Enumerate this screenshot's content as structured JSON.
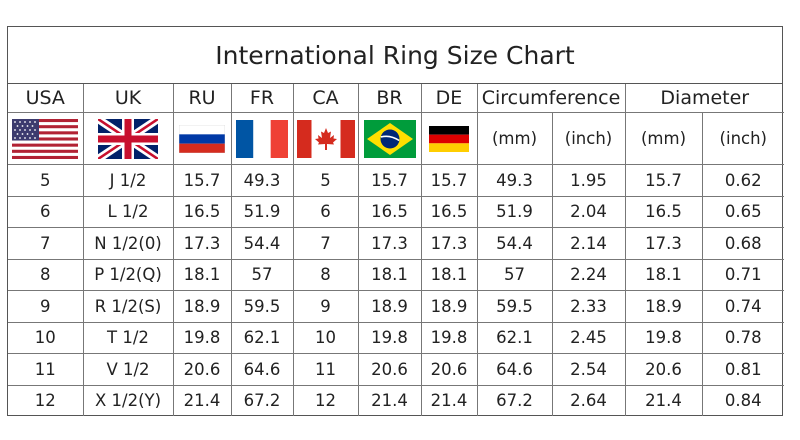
{
  "title": "International Ring Size Chart",
  "headers": [
    "USA",
    "UK",
    "RU",
    "FR",
    "CA",
    "BR",
    "DE",
    "Circumference",
    "Diameter"
  ],
  "units": [
    "(mm)",
    "(inch)",
    "(mm)",
    "(inch)"
  ],
  "flags": [
    "usa-flag-icon",
    "uk-flag-icon",
    "russia-flag-icon",
    "france-flag-icon",
    "canada-flag-icon",
    "brazil-flag-icon",
    "germany-flag-icon"
  ],
  "rows": [
    [
      "5",
      "J 1/2",
      "15.7",
      "49.3",
      "5",
      "15.7",
      "15.7",
      "49.3",
      "1.95",
      "15.7",
      "0.62"
    ],
    [
      "6",
      "L 1/2",
      "16.5",
      "51.9",
      "6",
      "16.5",
      "16.5",
      "51.9",
      "2.04",
      "16.5",
      "0.65"
    ],
    [
      "7",
      "N 1/2(0)",
      "17.3",
      "54.4",
      "7",
      "17.3",
      "17.3",
      "54.4",
      "2.14",
      "17.3",
      "0.68"
    ],
    [
      "8",
      "P 1/2(Q)",
      "18.1",
      "57",
      "8",
      "18.1",
      "18.1",
      "57",
      "2.24",
      "18.1",
      "0.71"
    ],
    [
      "9",
      "R 1/2(S)",
      "18.9",
      "59.5",
      "9",
      "18.9",
      "18.9",
      "59.5",
      "2.33",
      "18.9",
      "0.74"
    ],
    [
      "10",
      "T 1/2",
      "19.8",
      "62.1",
      "10",
      "19.8",
      "19.8",
      "62.1",
      "2.45",
      "19.8",
      "0.78"
    ],
    [
      "11",
      "V 1/2",
      "20.6",
      "64.6",
      "11",
      "20.6",
      "20.6",
      "64.6",
      "2.54",
      "20.6",
      "0.81"
    ],
    [
      "12",
      "X 1/2(Y)",
      "21.4",
      "67.2",
      "12",
      "21.4",
      "21.4",
      "67.2",
      "2.64",
      "21.4",
      "0.84"
    ]
  ]
}
